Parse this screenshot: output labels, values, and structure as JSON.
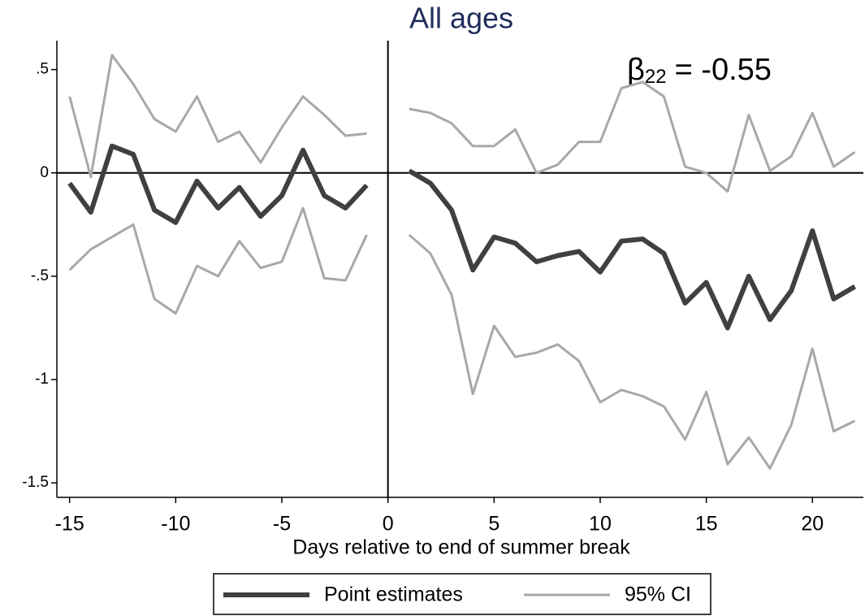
{
  "chart_data": {
    "type": "line",
    "title": "All ages",
    "x_label": "Days relative to end of summer break",
    "x": [
      -15,
      -14,
      -13,
      -12,
      -11,
      -10,
      -9,
      -8,
      -7,
      -6,
      -5,
      -4,
      -3,
      -2,
      -1,
      0,
      1,
      2,
      3,
      4,
      5,
      6,
      7,
      8,
      9,
      10,
      11,
      12,
      13,
      14,
      15,
      16,
      17,
      18,
      19,
      20,
      21,
      22
    ],
    "series": [
      {
        "name": "Point estimates",
        "color": "#404040",
        "width": 6,
        "values": [
          -0.05,
          -0.19,
          0.13,
          0.09,
          -0.18,
          -0.24,
          -0.04,
          -0.17,
          -0.07,
          -0.21,
          -0.11,
          0.11,
          -0.11,
          -0.17,
          -0.06,
          null,
          0.01,
          -0.05,
          -0.18,
          -0.47,
          -0.31,
          -0.34,
          -0.43,
          -0.4,
          -0.38,
          -0.48,
          -0.33,
          -0.32,
          -0.39,
          -0.63,
          -0.53,
          -0.75,
          -0.5,
          -0.71,
          -0.57,
          -0.28,
          -0.61,
          -0.55
        ]
      },
      {
        "name": "95% CI",
        "color": "#a8a8a8",
        "width": 3,
        "values": [
          0.37,
          -0.02,
          0.57,
          0.43,
          0.26,
          0.2,
          0.37,
          0.15,
          0.2,
          0.05,
          0.22,
          0.37,
          0.28,
          0.18,
          0.19,
          null,
          0.31,
          0.29,
          0.24,
          0.13,
          0.13,
          0.21,
          0.0,
          0.04,
          0.15,
          0.15,
          0.41,
          0.44,
          0.37,
          0.03,
          0.0,
          -0.09,
          0.28,
          0.01,
          0.08,
          0.29,
          0.03,
          0.1
        ],
        "lower": [
          -0.47,
          -0.37,
          -0.31,
          -0.25,
          -0.61,
          -0.68,
          -0.45,
          -0.5,
          -0.33,
          -0.46,
          -0.43,
          -0.17,
          -0.51,
          -0.52,
          -0.3,
          null,
          -0.3,
          -0.39,
          -0.59,
          -1.07,
          -0.74,
          -0.89,
          -0.87,
          -0.83,
          -0.91,
          -1.11,
          -1.05,
          -1.08,
          -1.13,
          -1.29,
          -1.06,
          -1.41,
          -1.28,
          -1.43,
          -1.22,
          -0.85,
          -1.25,
          -1.2
        ]
      }
    ],
    "xlim": [
      -15.6,
      22.4
    ],
    "ylim": [
      -1.57,
      0.64
    ],
    "xticks": [
      -15,
      -10,
      -5,
      0,
      5,
      10,
      15,
      20
    ],
    "yticks": [
      {
        "value": 0.5,
        "label": ".5"
      },
      0,
      {
        "value": -0.5,
        "label": "-.5"
      },
      -1,
      -1.5
    ],
    "reference_lines": {
      "x": 0,
      "y": 0
    },
    "annotation": {
      "symbol": "β",
      "subscript": "22",
      "text": "=  -0.55"
    },
    "legend": "bottom"
  }
}
